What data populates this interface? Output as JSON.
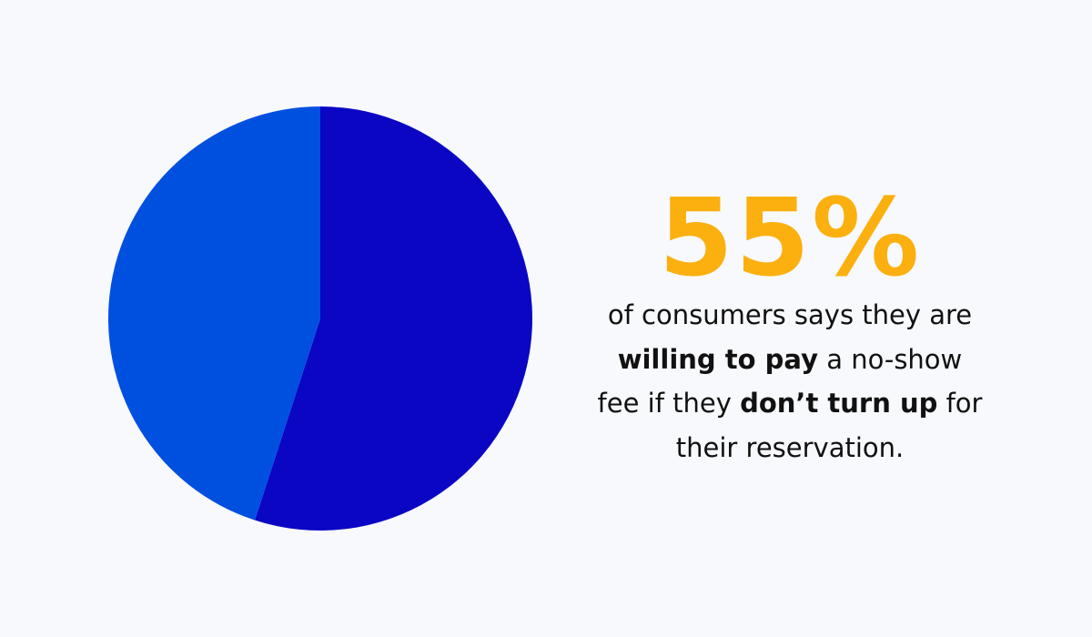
{
  "chart_data": {
    "type": "pie",
    "values": [
      55,
      45
    ],
    "value_labels": [
      "55%",
      null
    ],
    "colors": [
      "#0a06c4",
      "#0050e0"
    ],
    "start_angle": 0,
    "direction": "clockwise",
    "description_lines": [
      [
        {
          "text": "of consumers says they are",
          "bold": false
        }
      ],
      [
        {
          "text": "willing to pay",
          "bold": true
        },
        {
          "text": " a no-show",
          "bold": false
        }
      ],
      [
        {
          "text": "fee if they ",
          "bold": false
        },
        {
          "text": "don’t turn up",
          "bold": true
        },
        {
          "text": " for",
          "bold": false
        }
      ],
      [
        {
          "text": "their reservation.",
          "bold": false
        }
      ]
    ]
  }
}
